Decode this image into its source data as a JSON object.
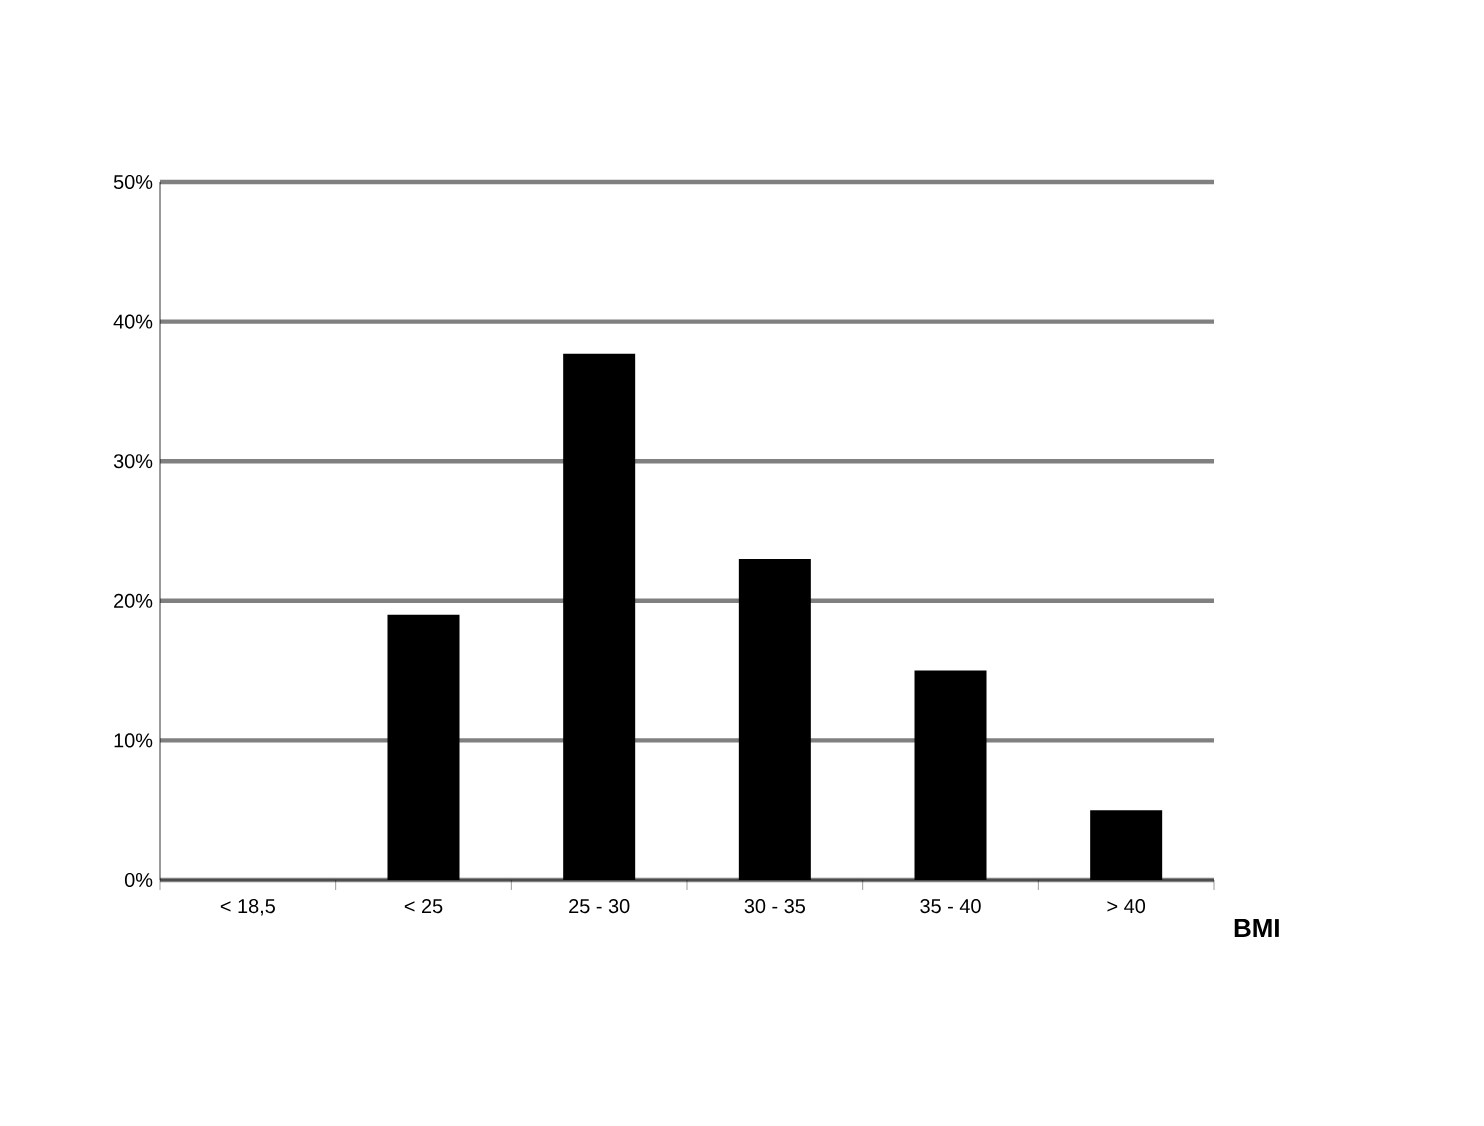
{
  "chart_data": {
    "type": "bar",
    "xlabel": "BMI",
    "categories": [
      "< 18,5",
      "< 25",
      "25 - 30",
      "30 - 35",
      "35 - 40",
      "> 40"
    ],
    "values": [
      0,
      19,
      37.7,
      23,
      15,
      5
    ],
    "color": "#000000",
    "ylim": [
      0,
      50
    ],
    "yticks": [
      {
        "value": 0,
        "label": "0%"
      },
      {
        "value": 10,
        "label": "10%"
      },
      {
        "value": 20,
        "label": "20%"
      },
      {
        "value": 30,
        "label": "30%"
      },
      {
        "value": 40,
        "label": "40%"
      },
      {
        "value": 50,
        "label": "50%"
      }
    ],
    "grid": "y"
  }
}
